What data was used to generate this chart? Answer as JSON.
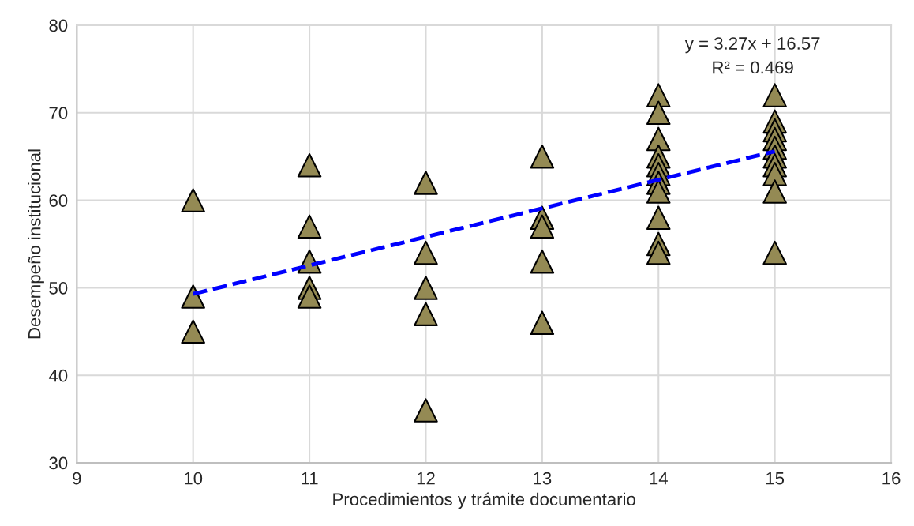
{
  "chart_data": {
    "type": "scatter",
    "xlabel": "Procedimientos y trámite documentario",
    "ylabel": "Desempeño institucional",
    "xlim": [
      9,
      16
    ],
    "xticks": [
      9,
      10,
      11,
      12,
      13,
      14,
      15,
      16
    ],
    "ylim": [
      30,
      80
    ],
    "yticks": [
      30,
      40,
      50,
      60,
      70,
      80
    ],
    "grid": true,
    "marker": "triangle",
    "series": [
      {
        "color": "#948a54",
        "x": [
          10,
          10,
          10,
          11,
          11,
          11,
          11,
          11,
          12,
          12,
          12,
          12,
          12,
          13,
          13,
          13,
          13,
          13,
          14,
          14,
          14,
          14,
          14,
          14,
          14,
          14,
          14,
          14,
          14,
          15,
          15,
          15,
          15,
          15,
          15,
          15,
          15,
          15,
          15
        ],
        "values": [
          60,
          49,
          45,
          64,
          57,
          53,
          50,
          49,
          62,
          54,
          50,
          47,
          36,
          65,
          58,
          57,
          53,
          46,
          72,
          70,
          67,
          65,
          64,
          63,
          62,
          61,
          58,
          55,
          54,
          72,
          69,
          68,
          67,
          66,
          65,
          64,
          63,
          61,
          54
        ]
      },
      {
        "type": "line",
        "color": "#0000ff",
        "line_style": "dashed",
        "marker": "none",
        "x": [
          10,
          15
        ],
        "values": [
          49.3,
          65.6
        ]
      }
    ],
    "annotations": [
      "y = 3.27x + 16.57",
      "R² = 0.469"
    ]
  }
}
